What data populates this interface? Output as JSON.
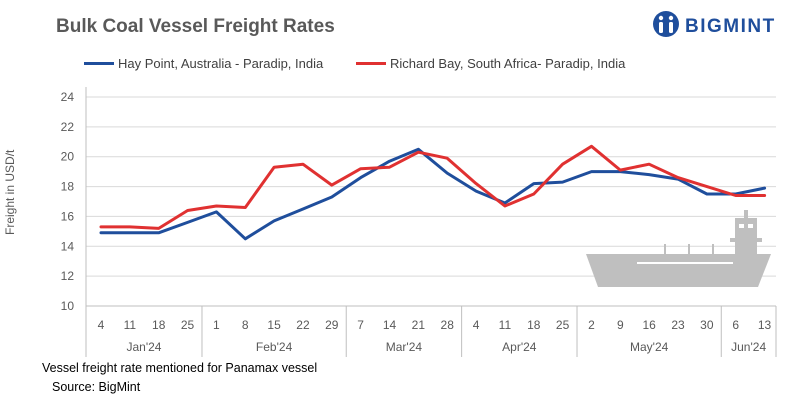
{
  "title": "Bulk Coal Vessel Freight Rates",
  "logo_text": "BIGMINT",
  "footnote": "Vessel freight rate mentioned for Panamax vessel",
  "source": "Source: BigMint",
  "colors": {
    "hay_point": "#1f4e9c",
    "richard_bay": "#e03131",
    "ship": "#bfbfbf",
    "axis_text": "#595959"
  },
  "chart_data": {
    "type": "line",
    "ylabel": "Freight  in USD/t",
    "ylim": [
      10,
      24
    ],
    "y_ticks": [
      10,
      12,
      14,
      16,
      18,
      20,
      22,
      24
    ],
    "grid": "horizontal",
    "legend_position": "top",
    "x_labels": [
      "4",
      "11",
      "18",
      "25",
      "1",
      "8",
      "15",
      "22",
      "29",
      "7",
      "14",
      "21",
      "28",
      "4",
      "11",
      "18",
      "25",
      "2",
      "9",
      "16",
      "23",
      "30",
      "6",
      "13"
    ],
    "months": [
      {
        "label": "Jan'24",
        "start": 0,
        "end": 3
      },
      {
        "label": "Feb'24",
        "start": 4,
        "end": 8
      },
      {
        "label": "Mar'24",
        "start": 9,
        "end": 12
      },
      {
        "label": "Apr'24",
        "start": 13,
        "end": 16
      },
      {
        "label": "May'24",
        "start": 17,
        "end": 21
      },
      {
        "label": "Jun'24",
        "start": 22,
        "end": 23
      }
    ],
    "series": [
      {
        "name": "Hay Point, Australia - Paradip, India",
        "color": "#1f4e9c",
        "values": [
          14.9,
          14.9,
          14.9,
          15.6,
          16.3,
          14.5,
          15.7,
          16.5,
          17.3,
          18.6,
          19.7,
          20.5,
          18.9,
          17.7,
          16.9,
          18.2,
          18.3,
          19.0,
          19.0,
          18.8,
          18.5,
          17.5,
          17.5,
          17.9
        ]
      },
      {
        "name": "Richard Bay, South Africa- Paradip, India",
        "color": "#e03131",
        "values": [
          15.3,
          15.3,
          15.2,
          16.4,
          16.7,
          16.6,
          19.3,
          19.5,
          18.1,
          19.2,
          19.3,
          20.3,
          19.9,
          18.2,
          16.7,
          17.5,
          19.5,
          20.7,
          19.1,
          19.5,
          18.6,
          18.0,
          17.4,
          17.4
        ]
      }
    ]
  }
}
